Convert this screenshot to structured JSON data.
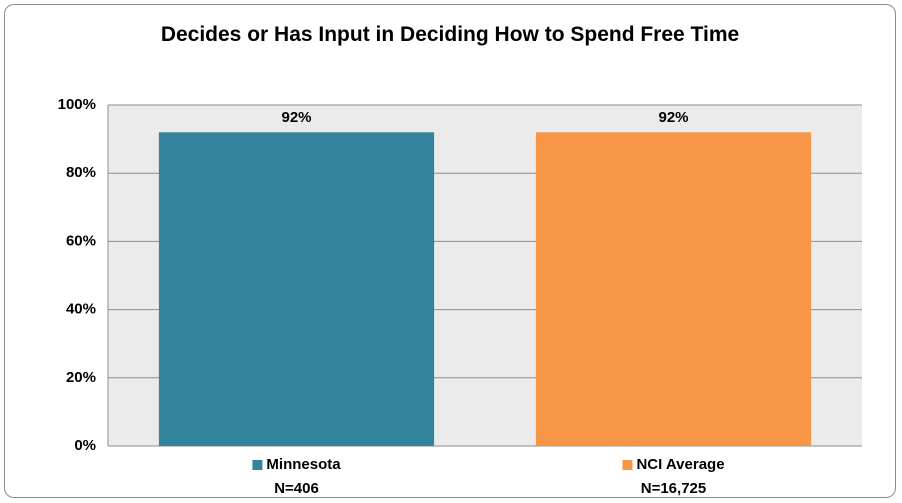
{
  "chart_data": {
    "type": "bar",
    "title": "Decides or Has Input in Deciding How to Spend Free Time",
    "categories": [
      "Minnesota",
      "NCI Average"
    ],
    "category_notes": [
      "N=406",
      "N=16,725"
    ],
    "values": [
      92,
      92
    ],
    "value_labels": [
      "92%",
      "92%"
    ],
    "colors": [
      "#31849b",
      "#f79646"
    ],
    "ylim": [
      0,
      100
    ],
    "yticks": [
      {
        "value": 0,
        "label": "0%"
      },
      {
        "value": 20,
        "label": "20%"
      },
      {
        "value": 40,
        "label": "40%"
      },
      {
        "value": 60,
        "label": "60%"
      },
      {
        "value": 80,
        "label": "80%"
      },
      {
        "value": 100,
        "label": "100%"
      }
    ],
    "grid": true
  }
}
